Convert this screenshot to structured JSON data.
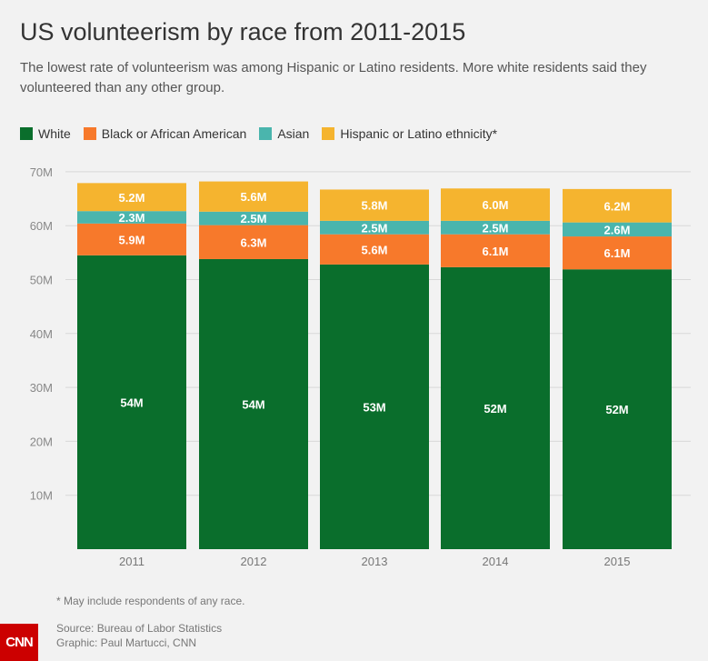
{
  "title": "US volunteerism by race from 2011-2015",
  "subtitle": "The lowest rate of volunteerism was among Hispanic or Latino residents. More white residents said they volunteered than any other group.",
  "note": "* May include respondents of any race.",
  "source": "Source: Bureau of Labor Statistics",
  "credit": "Graphic: Paul Martucci, CNN",
  "logo": "CNN",
  "chart_data": {
    "type": "bar",
    "stacked": true,
    "categories": [
      "2011",
      "2012",
      "2013",
      "2014",
      "2015"
    ],
    "ylim": [
      0,
      70
    ],
    "yticks": [
      10,
      20,
      30,
      40,
      50,
      60,
      70
    ],
    "ytick_labels": [
      "10M",
      "20M",
      "30M",
      "40M",
      "50M",
      "60M",
      "70M"
    ],
    "grid": true,
    "legend": "top-left",
    "series": [
      {
        "name": "White",
        "color": "#0a6e2c",
        "values": [
          54.5,
          53.8,
          52.8,
          52.3,
          51.9
        ],
        "labels": [
          "54M",
          "54M",
          "53M",
          "52M",
          "52M"
        ]
      },
      {
        "name": "Black or African American",
        "color": "#f7792b",
        "values": [
          5.9,
          6.3,
          5.6,
          6.1,
          6.1
        ],
        "labels": [
          "5.9M",
          "6.3M",
          "5.6M",
          "6.1M",
          "6.1M"
        ]
      },
      {
        "name": "Asian",
        "color": "#4ab5ad",
        "values": [
          2.3,
          2.5,
          2.5,
          2.5,
          2.6
        ],
        "labels": [
          "2.3M",
          "2.5M",
          "2.5M",
          "2.5M",
          "2.6M"
        ]
      },
      {
        "name": "Hispanic or Latino ethnicity*",
        "color": "#f5b42f",
        "values": [
          5.2,
          5.6,
          5.8,
          6.0,
          6.2
        ],
        "labels": [
          "5.2M",
          "5.6M",
          "5.8M",
          "6.0M",
          "6.2M"
        ]
      }
    ]
  }
}
